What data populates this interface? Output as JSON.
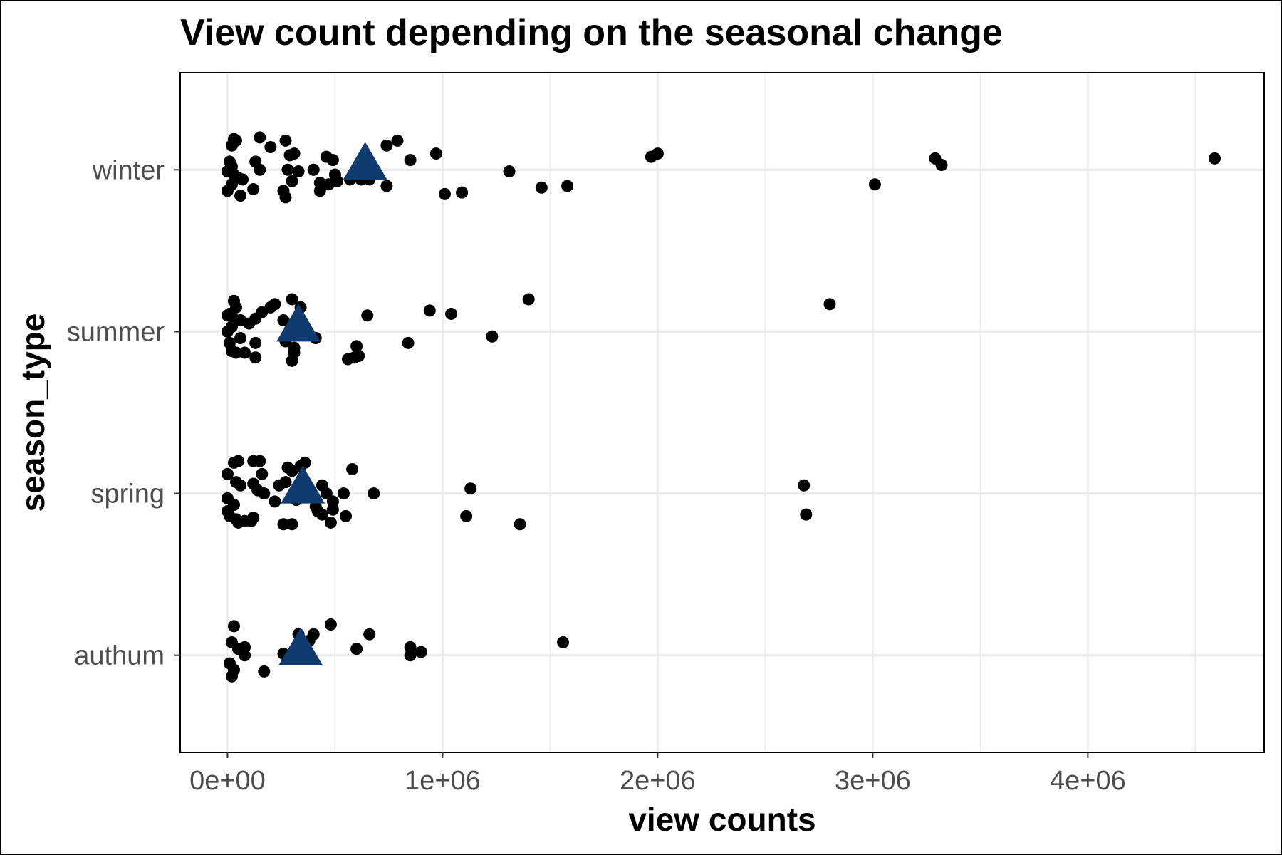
{
  "chart_data": {
    "type": "scatter",
    "title": "View count depending on the seasonal change",
    "xlabel": "view counts",
    "ylabel": "season_type",
    "categories": [
      "authum",
      "spring",
      "summer",
      "winter"
    ],
    "x_ticks": [
      0,
      1000000,
      2000000,
      3000000,
      4000000
    ],
    "x_tick_labels": [
      "0e+00",
      "1e+06",
      "2e+06",
      "3e+06",
      "4e+06"
    ],
    "xlim": [
      -220000,
      4820000
    ],
    "grid": true,
    "legend": "none",
    "point_color": "#000000",
    "mean_color": "#0f3b6e",
    "series": [
      {
        "category": "winter",
        "mean": 640000,
        "points": [
          [
            30000,
            0.19
          ],
          [
            40000,
            0.18
          ],
          [
            20000,
            0.15
          ],
          [
            10000,
            0.05
          ],
          [
            20000,
            0.02
          ],
          [
            0,
            -0.01
          ],
          [
            30000,
            -0.03
          ],
          [
            50000,
            -0.05
          ],
          [
            0,
            -0.13
          ],
          [
            60000,
            -0.16
          ],
          [
            20000,
            -0.09
          ],
          [
            70000,
            -0.06
          ],
          [
            150000,
            0.2
          ],
          [
            200000,
            0.14
          ],
          [
            270000,
            0.18
          ],
          [
            290000,
            0.09
          ],
          [
            310000,
            0.1
          ],
          [
            130000,
            0.05
          ],
          [
            150000,
            0.0
          ],
          [
            120000,
            -0.12
          ],
          [
            260000,
            -0.13
          ],
          [
            270000,
            -0.17
          ],
          [
            280000,
            0.0
          ],
          [
            300000,
            -0.07
          ],
          [
            330000,
            -0.01
          ],
          [
            460000,
            0.08
          ],
          [
            490000,
            0.06
          ],
          [
            400000,
            0.0
          ],
          [
            500000,
            -0.03
          ],
          [
            510000,
            -0.07
          ],
          [
            430000,
            -0.08
          ],
          [
            430000,
            -0.13
          ],
          [
            470000,
            -0.09
          ],
          [
            570000,
            -0.06
          ],
          [
            620000,
            -0.06
          ],
          [
            660000,
            -0.06
          ],
          [
            740000,
            -0.1
          ],
          [
            740000,
            0.15
          ],
          [
            790000,
            0.18
          ],
          [
            850000,
            0.06
          ],
          [
            970000,
            0.1
          ],
          [
            1010000,
            -0.15
          ],
          [
            1090000,
            -0.14
          ],
          [
            1310000,
            -0.01
          ],
          [
            1460000,
            -0.11
          ],
          [
            1580000,
            -0.1
          ],
          [
            1970000,
            0.08
          ],
          [
            2000000,
            0.1
          ],
          [
            3010000,
            -0.09
          ],
          [
            3290000,
            0.07
          ],
          [
            3320000,
            0.03
          ],
          [
            4590000,
            0.07
          ]
        ]
      },
      {
        "category": "summer",
        "mean": 330000,
        "points": [
          [
            30000,
            0.19
          ],
          [
            40000,
            0.15
          ],
          [
            10000,
            0.11
          ],
          [
            0,
            0.1
          ],
          [
            40000,
            0.07
          ],
          [
            60000,
            0.07
          ],
          [
            20000,
            0.03
          ],
          [
            0,
            0.0
          ],
          [
            60000,
            -0.04
          ],
          [
            10000,
            -0.07
          ],
          [
            130000,
            -0.07
          ],
          [
            20000,
            -0.12
          ],
          [
            40000,
            -0.13
          ],
          [
            80000,
            -0.13
          ],
          [
            130000,
            -0.16
          ],
          [
            100000,
            0.05
          ],
          [
            130000,
            0.08
          ],
          [
            160000,
            0.12
          ],
          [
            200000,
            0.15
          ],
          [
            220000,
            0.17
          ],
          [
            300000,
            0.2
          ],
          [
            340000,
            0.15
          ],
          [
            260000,
            0.07
          ],
          [
            290000,
            0.01
          ],
          [
            310000,
            -0.1
          ],
          [
            310000,
            -0.13
          ],
          [
            300000,
            -0.18
          ],
          [
            270000,
            -0.06
          ],
          [
            410000,
            -0.04
          ],
          [
            650000,
            0.1
          ],
          [
            560000,
            -0.17
          ],
          [
            590000,
            -0.16
          ],
          [
            600000,
            -0.09
          ],
          [
            610000,
            -0.15
          ],
          [
            840000,
            -0.07
          ],
          [
            940000,
            0.13
          ],
          [
            1040000,
            0.11
          ],
          [
            1230000,
            -0.03
          ],
          [
            1400000,
            0.2
          ],
          [
            2800000,
            0.17
          ]
        ]
      },
      {
        "category": "spring",
        "mean": 350000,
        "points": [
          [
            30000,
            0.19
          ],
          [
            50000,
            0.2
          ],
          [
            0,
            0.12
          ],
          [
            40000,
            0.07
          ],
          [
            60000,
            0.05
          ],
          [
            0,
            -0.03
          ],
          [
            30000,
            -0.07
          ],
          [
            0,
            -0.11
          ],
          [
            10000,
            -0.14
          ],
          [
            40000,
            -0.16
          ],
          [
            50000,
            -0.18
          ],
          [
            80000,
            -0.17
          ],
          [
            110000,
            -0.17
          ],
          [
            120000,
            -0.15
          ],
          [
            120000,
            0.2
          ],
          [
            150000,
            0.2
          ],
          [
            160000,
            0.12
          ],
          [
            120000,
            0.06
          ],
          [
            140000,
            0.02
          ],
          [
            170000,
            0.0
          ],
          [
            220000,
            -0.05
          ],
          [
            240000,
            0.05
          ],
          [
            280000,
            0.16
          ],
          [
            300000,
            0.14
          ],
          [
            340000,
            0.17
          ],
          [
            360000,
            0.19
          ],
          [
            270000,
            0.07
          ],
          [
            320000,
            -0.04
          ],
          [
            410000,
            -0.08
          ],
          [
            260000,
            -0.19
          ],
          [
            300000,
            -0.19
          ],
          [
            440000,
            0.05
          ],
          [
            460000,
            0.0
          ],
          [
            490000,
            -0.05
          ],
          [
            490000,
            -0.1
          ],
          [
            540000,
            0.0
          ],
          [
            420000,
            -0.11
          ],
          [
            440000,
            -0.13
          ],
          [
            480000,
            -0.18
          ],
          [
            550000,
            -0.14
          ],
          [
            580000,
            0.15
          ],
          [
            680000,
            0.0
          ],
          [
            1130000,
            0.03
          ],
          [
            1110000,
            -0.14
          ],
          [
            1360000,
            -0.19
          ],
          [
            2680000,
            0.05
          ],
          [
            2690000,
            -0.13
          ]
        ]
      },
      {
        "category": "authum",
        "mean": 340000,
        "points": [
          [
            30000,
            0.18
          ],
          [
            20000,
            0.08
          ],
          [
            50000,
            0.04
          ],
          [
            80000,
            0.05
          ],
          [
            10000,
            -0.05
          ],
          [
            30000,
            -0.09
          ],
          [
            20000,
            -0.13
          ],
          [
            80000,
            0.0
          ],
          [
            170000,
            -0.1
          ],
          [
            260000,
            0.01
          ],
          [
            330000,
            0.13
          ],
          [
            400000,
            0.13
          ],
          [
            380000,
            0.09
          ],
          [
            370000,
            0.03
          ],
          [
            480000,
            0.19
          ],
          [
            600000,
            0.04
          ],
          [
            660000,
            0.13
          ],
          [
            850000,
            0.05
          ],
          [
            850000,
            0.0
          ],
          [
            900000,
            0.02
          ],
          [
            1560000,
            0.08
          ]
        ]
      }
    ]
  }
}
